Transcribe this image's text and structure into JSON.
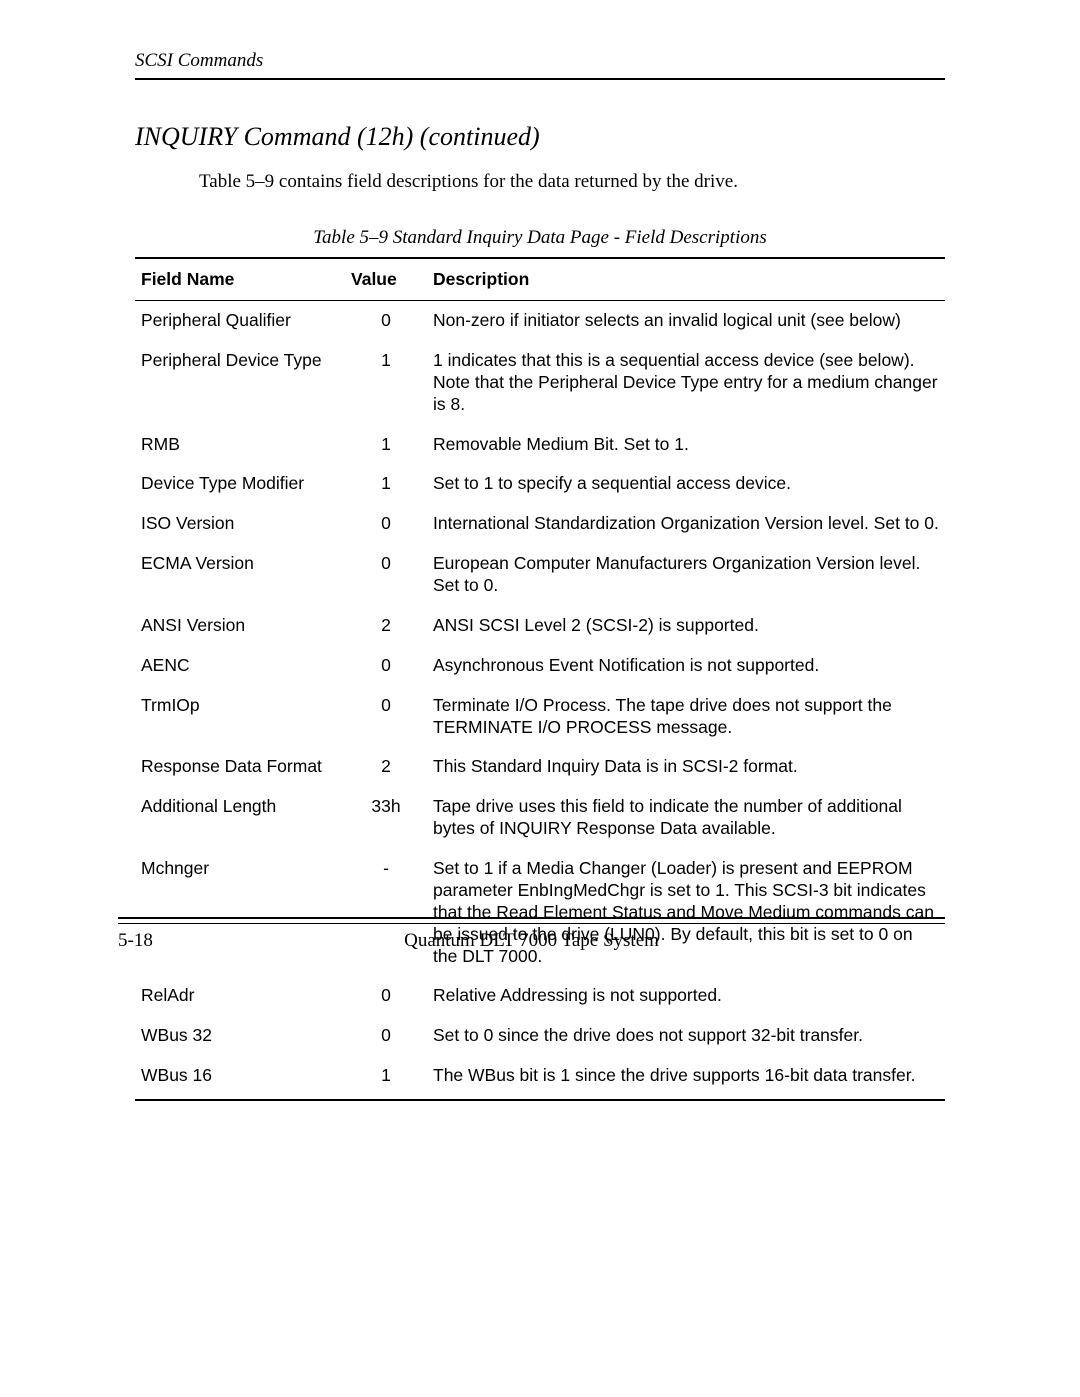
{
  "header": {
    "running": "SCSI Commands"
  },
  "section": {
    "title": "INQUIRY Command   (12h)   (continued)",
    "intro": "Table 5–9 contains field descriptions for the data returned by the drive."
  },
  "table": {
    "caption": "Table 5–9  Standard Inquiry Data Page - Field Descriptions",
    "columns": [
      "Field Name",
      "Value",
      "Description"
    ],
    "rows": [
      {
        "field": "Peripheral Qualifier",
        "value": "0",
        "desc": "Non-zero if initiator selects an invalid logical unit (see below)"
      },
      {
        "field": "Peripheral Device Type",
        "value": "1",
        "desc": "1 indicates that this is a sequential access device (see below). Note that the Peripheral Device Type entry for a medium changer is 8."
      },
      {
        "field": "RMB",
        "value": "1",
        "desc": "Removable Medium Bit. Set to 1."
      },
      {
        "field": "Device Type Modifier",
        "value": "1",
        "desc": "Set to 1 to specify a sequential access device."
      },
      {
        "field": "ISO Version",
        "value": "0",
        "desc": "International Standardization Organization Version level.  Set to 0."
      },
      {
        "field": "ECMA Version",
        "value": "0",
        "desc": "European Computer Manufacturers Organization Version level. Set to 0."
      },
      {
        "field": "ANSI Version",
        "value": "2",
        "desc": "ANSI SCSI Level 2 (SCSI-2) is supported."
      },
      {
        "field": "AENC",
        "value": "0",
        "desc": "Asynchronous Event Notification is not supported."
      },
      {
        "field": "TrmIOp",
        "value": "0",
        "desc": "Terminate I/O Process. The tape drive does not support the TERMINATE I/O PROCESS message."
      },
      {
        "field": "Response Data Format",
        "value": "2",
        "desc": "This Standard Inquiry Data is in SCSI-2 format."
      },
      {
        "field": "Additional Length",
        "value": "33h",
        "desc": "Tape drive uses this field to indicate the number of additional bytes of INQUIRY Response Data available."
      },
      {
        "field": "Mchnger",
        "value": "-",
        "desc": "Set to 1 if a Media Changer (Loader) is present and EEPROM parameter EnbIngMedChgr is set to 1. This SCSI-3 bit indicates that the Read Element Status and Move Medium commands can be issued to the drive (LUN0). By default, this bit is set to 0 on the DLT 7000."
      },
      {
        "field": "RelAdr",
        "value": "0",
        "desc": "Relative Addressing is not supported."
      },
      {
        "field": "WBus 32",
        "value": "0",
        "desc": "Set to 0 since the drive does not support 32-bit transfer."
      },
      {
        "field": "WBus 16",
        "value": "1",
        "desc": "The WBus bit is 1 since the drive supports 16-bit data transfer."
      }
    ]
  },
  "footer": {
    "page": "5-18",
    "title": "Quantum DLT 7000 Tape System"
  }
}
